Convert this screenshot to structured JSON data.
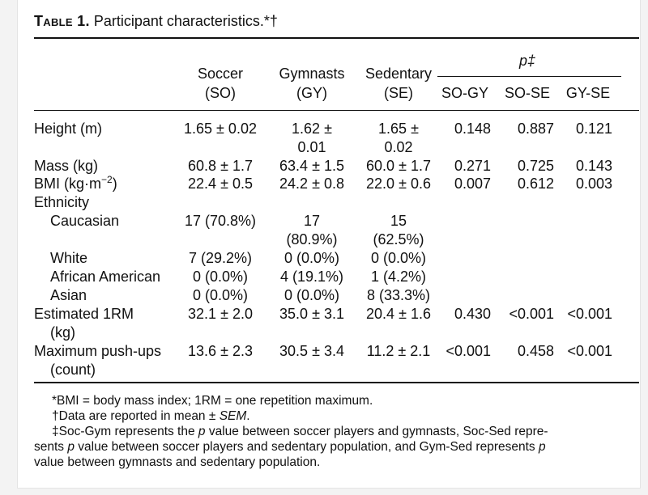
{
  "table": {
    "label": "Table 1.",
    "caption": "Participant characteristics.*†",
    "headers": {
      "soccer": [
        "Soccer",
        "(SO)"
      ],
      "gymnasts": [
        "Gymnasts",
        "(GY)"
      ],
      "sedentary": [
        "Sedentary",
        "(SE)"
      ],
      "p_group": "p‡",
      "p_cols": [
        "SO-GY",
        "SO-SE",
        "GY-SE"
      ]
    },
    "rows": {
      "height": {
        "label": "Height (m)",
        "so": "1.65 ± 0.02",
        "gy": [
          "1.62 ±",
          "0.01"
        ],
        "se": [
          "1.65 ±",
          "0.02"
        ],
        "p": [
          "0.148",
          "0.887",
          "0.121"
        ]
      },
      "mass": {
        "label": "Mass (kg)",
        "so": "60.8 ± 1.7",
        "gy": "63.4 ± 1.5",
        "se": "60.0 ± 1.7",
        "p": [
          "0.271",
          "0.725",
          "0.143"
        ]
      },
      "bmi": {
        "label": "BMI (kg·m−2)",
        "so": "22.4 ± 0.5",
        "gy": "24.2 ± 0.8",
        "se": "22.0 ± 0.6",
        "p": [
          "0.007",
          "0.612",
          "0.003"
        ]
      },
      "ethnicity": {
        "label": "Ethnicity"
      },
      "caucasian": {
        "label": "Caucasian",
        "so": "17 (70.8%)",
        "gy": [
          "17",
          "(80.9%)"
        ],
        "se": [
          "15",
          "(62.5%)"
        ]
      },
      "white": {
        "label": "White",
        "so": "7 (29.2%)",
        "gy": "0 (0.0%)",
        "se": "0 (0.0%)"
      },
      "african_american": {
        "label": "African American",
        "so": "0 (0.0%)",
        "gy": "4 (19.1%)",
        "se": "1 (4.2%)"
      },
      "asian": {
        "label": "Asian",
        "so": "0 (0.0%)",
        "gy": "0 (0.0%)",
        "se": "8 (33.3%)"
      },
      "one_rm": {
        "label": [
          "Estimated 1RM",
          "(kg)"
        ],
        "so": "32.1 ± 2.0",
        "gy": "35.0 ± 3.1",
        "se": "20.4 ± 1.6",
        "p": [
          "0.430",
          "<0.001",
          "<0.001"
        ]
      },
      "pushups": {
        "label": [
          "Maximum push-ups",
          "(count)"
        ],
        "so": "13.6 ± 2.3",
        "gy": "30.5 ± 3.4",
        "se": "11.2 ± 2.1",
        "p": [
          "<0.001",
          "0.458",
          "<0.001"
        ]
      }
    },
    "footnotes": {
      "abbrev": "*BMI = body mass index; 1RM = one repetition maximum.",
      "data_pre": "†Data are reported in mean ± ",
      "data_sem": "SEM",
      "data_post": ".",
      "p1a": "‡Soc-Gym represents the ",
      "p1b": "p",
      "p1c": " value between soccer players and gymnasts, Soc-Sed repre-",
      "p2a": "sents ",
      "p2b": "p",
      "p2c": " value between soccer players and sedentary population, and Gym-Sed represents ",
      "p2d": "p",
      "p3": "value between gymnasts and sedentary population."
    }
  }
}
